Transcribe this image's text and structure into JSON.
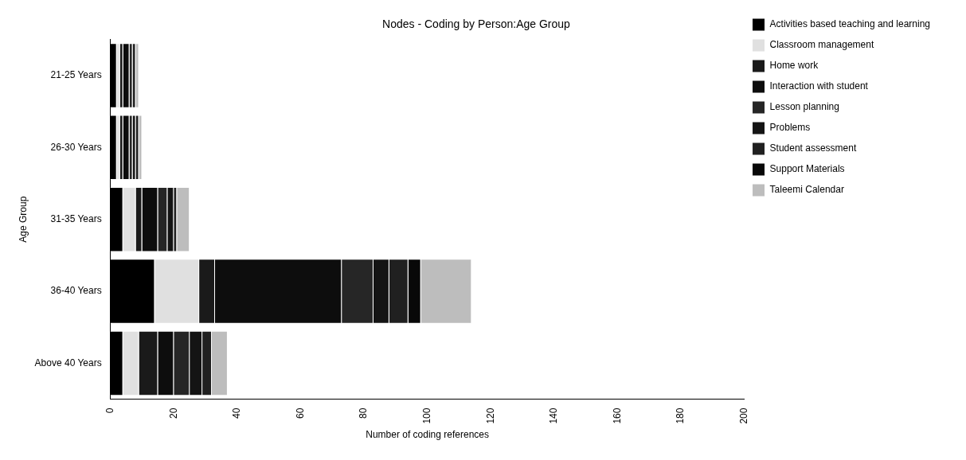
{
  "chart_data": {
    "type": "bar",
    "title": "Nodes - Coding by Person:Age Group",
    "xlabel": "Number of coding references",
    "ylabel": "Age Group",
    "orientation": "horizontal",
    "stacked": true,
    "legend": "right",
    "grid": false,
    "categories": [
      "21-25 Years",
      "26-30 Years",
      "31-35 Years",
      "36-40 Years",
      "Above 40 Years"
    ],
    "xlim": [
      0,
      200
    ],
    "xticks": [
      0,
      20,
      40,
      60,
      80,
      100,
      120,
      140,
      160,
      180,
      200
    ],
    "series": [
      {
        "name": "Activities based teaching and learning",
        "color": "#000000",
        "values": [
          2,
          2,
          4,
          14,
          4
        ]
      },
      {
        "name": "Classroom management",
        "color": "#e0e0e0",
        "values": [
          1,
          1,
          4,
          14,
          5
        ]
      },
      {
        "name": "Home work",
        "color": "#1a1a1a",
        "values": [
          1,
          1,
          2,
          5,
          6
        ]
      },
      {
        "name": "Interaction with student",
        "color": "#0d0d0d",
        "values": [
          2,
          2,
          5,
          40,
          5
        ]
      },
      {
        "name": "Lesson planning",
        "color": "#262626",
        "values": [
          1,
          1,
          3,
          10,
          5
        ]
      },
      {
        "name": "Problems",
        "color": "#141414",
        "values": [
          0,
          1,
          2,
          5,
          4
        ]
      },
      {
        "name": "Student assessment",
        "color": "#202020",
        "values": [
          1,
          1,
          1,
          6,
          3
        ]
      },
      {
        "name": "Support Materials",
        "color": "#080808",
        "values": [
          0,
          0,
          0,
          4,
          0
        ]
      },
      {
        "name": "Taleemi Calendar",
        "color": "#bdbdbd",
        "values": [
          1,
          1,
          4,
          16,
          5
        ]
      }
    ]
  }
}
